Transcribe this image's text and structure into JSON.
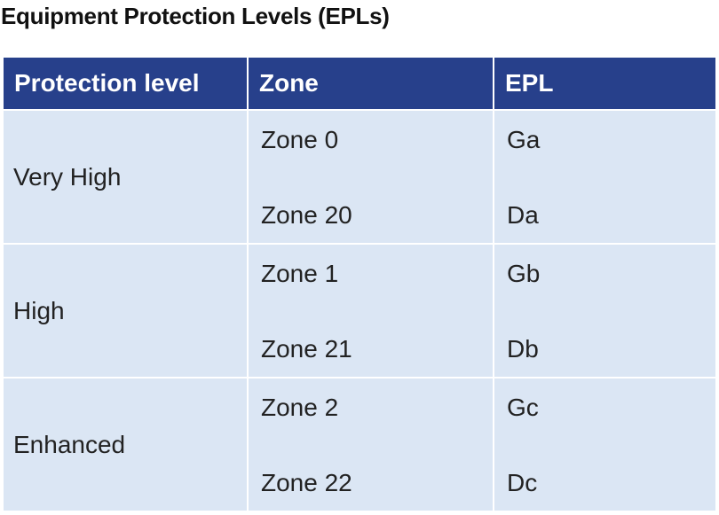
{
  "title": "Equipment Protection Levels (EPLs)",
  "table": {
    "headers": [
      "Protection level",
      "Zone",
      "EPL"
    ],
    "groups": [
      {
        "level": "Very High",
        "zones": [
          "Zone 0",
          "Zone 20"
        ],
        "epls": [
          "Ga",
          "Da"
        ]
      },
      {
        "level": "High",
        "zones": [
          "Zone 1",
          "Zone 21"
        ],
        "epls": [
          "Gb",
          "Db"
        ]
      },
      {
        "level": "Enhanced",
        "zones": [
          "Zone 2",
          "Zone 22"
        ],
        "epls": [
          "Gc",
          "Dc"
        ]
      }
    ]
  },
  "colors": {
    "header_bg": "#27408b",
    "row_bg": "#dbe6f4"
  }
}
